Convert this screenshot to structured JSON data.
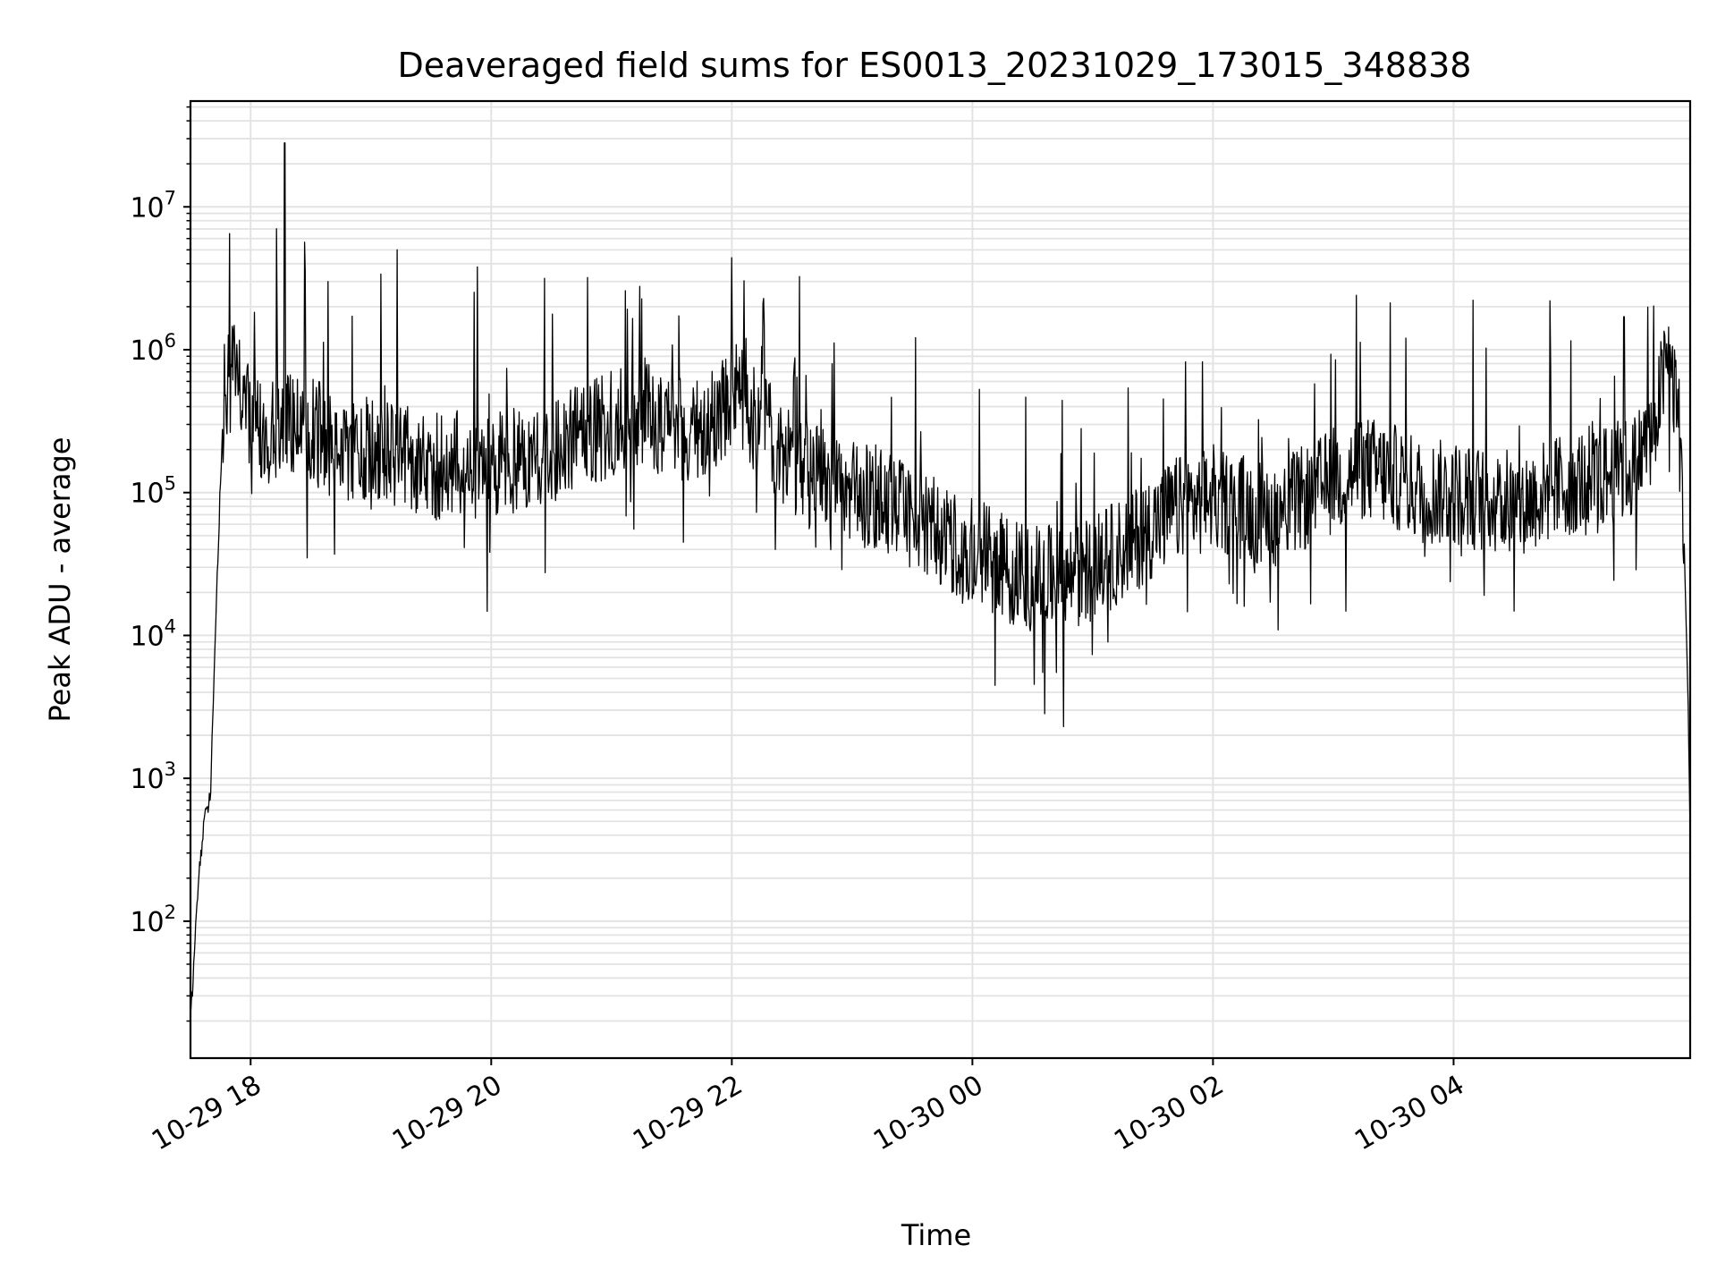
{
  "chart_data": {
    "type": "line",
    "title": "Deaveraged field sums for ES0013_20231029_173015_348838",
    "xlabel": "Time",
    "ylabel": "Peak ADU - average",
    "x_ticks": [
      "10-29 18",
      "10-29 20",
      "10-29 22",
      "10-30 00",
      "10-30 02",
      "10-30 04"
    ],
    "y_ticks": [
      {
        "value": 100,
        "base": "10",
        "exp": "2"
      },
      {
        "value": 1000,
        "base": "10",
        "exp": "3"
      },
      {
        "value": 10000,
        "base": "10",
        "exp": "4"
      },
      {
        "value": 100000,
        "base": "10",
        "exp": "5"
      },
      {
        "value": 1000000,
        "base": "10",
        "exp": "6"
      },
      {
        "value": 10000000,
        "base": "10",
        "exp": "7"
      }
    ],
    "x_range": [
      "2023-10-29 17:30",
      "2023-10-30 05:58"
    ],
    "y_scale": "log",
    "ylim": [
      11,
      55000000
    ],
    "grid": "major and minor",
    "line_color": "#000000",
    "grid_color": "#e3e3e3",
    "series": [
      {
        "x": [
          "2023-10-29 17:30",
          "2023-10-29 17:32",
          "2023-10-29 17:34",
          "2023-10-29 17:37",
          "2023-10-29 17:40",
          "2023-10-29 17:43",
          "2023-10-29 17:46",
          "2023-10-29 17:50",
          "2023-10-29 17:55",
          "2023-10-29 18:00",
          "2023-10-29 18:10",
          "2023-10-29 18:20",
          "2023-10-29 18:35",
          "2023-10-29 18:45",
          "2023-10-29 19:00",
          "2023-10-29 19:15",
          "2023-10-29 19:30",
          "2023-10-29 19:45",
          "2023-10-29 20:00",
          "2023-10-29 20:15",
          "2023-10-29 20:30",
          "2023-10-29 20:45",
          "2023-10-29 21:00",
          "2023-10-29 21:15",
          "2023-10-29 21:30",
          "2023-10-29 21:45",
          "2023-10-29 22:00",
          "2023-10-29 22:15",
          "2023-10-29 22:30",
          "2023-10-29 22:45",
          "2023-10-29 23:00",
          "2023-10-29 23:15",
          "2023-10-29 23:30",
          "2023-10-29 23:45",
          "2023-10-30 00:00",
          "2023-10-30 00:15",
          "2023-10-30 00:30",
          "2023-10-30 00:45",
          "2023-10-30 01:00",
          "2023-10-30 01:15",
          "2023-10-30 01:30",
          "2023-10-30 01:45",
          "2023-10-30 02:00",
          "2023-10-30 02:15",
          "2023-10-30 02:30",
          "2023-10-30 02:45",
          "2023-10-30 03:00",
          "2023-10-30 03:15",
          "2023-10-30 03:30",
          "2023-10-30 03:45",
          "2023-10-30 04:00",
          "2023-10-30 04:15",
          "2023-10-30 04:30",
          "2023-10-30 04:45",
          "2023-10-30 05:00",
          "2023-10-30 05:15",
          "2023-10-30 05:30",
          "2023-10-30 05:40",
          "2023-10-30 05:47",
          "2023-10-30 05:52",
          "2023-10-30 05:55",
          "2023-10-30 05:57",
          "2023-10-30 05:58"
        ],
        "values": [
          20,
          60,
          200,
          500,
          800,
          20000,
          300000,
          800000,
          500000,
          300000,
          250000,
          300000,
          250000,
          200000,
          200000,
          180000,
          150000,
          160000,
          150000,
          170000,
          200000,
          250000,
          300000,
          350000,
          300000,
          250000,
          500000,
          300000,
          150000,
          120000,
          100000,
          90000,
          70000,
          50000,
          40000,
          30000,
          25000,
          25000,
          30000,
          40000,
          60000,
          80000,
          90000,
          80000,
          70000,
          90000,
          120000,
          150000,
          130000,
          100000,
          100000,
          90000,
          80000,
          100000,
          120000,
          130000,
          150000,
          300000,
          900000,
          400000,
          50000,
          3000,
          400
        ]
      }
    ],
    "spikes": [
      {
        "x": "2023-10-29 18:17",
        "value": 28000000
      },
      {
        "x": "2023-10-29 19:13",
        "value": 5000000
      },
      {
        "x": "2023-10-29 19:53",
        "value": 3800000
      },
      {
        "x": "2023-10-29 20:48",
        "value": 3200000
      },
      {
        "x": "2023-10-29 22:00",
        "value": 4400000
      },
      {
        "x": "2023-10-29 22:07",
        "value": 1200000
      },
      {
        "x": "2023-10-30 03:01",
        "value": 850000
      },
      {
        "x": "2023-10-30 04:48",
        "value": 2200000
      },
      {
        "x": "2023-10-30 05:25",
        "value": 1700000
      },
      {
        "x": "2023-10-30 00:35",
        "value": 5500
      },
      {
        "x": "2023-10-30 00:42",
        "value": 5500
      }
    ]
  }
}
